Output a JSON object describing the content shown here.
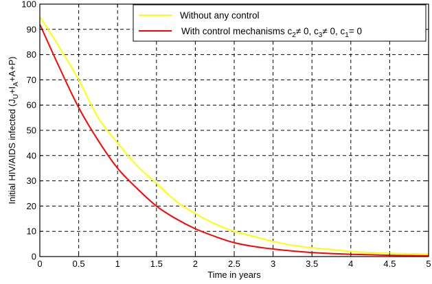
{
  "chart_data": {
    "type": "line",
    "xlabel": "Time in years",
    "ylabel": {
      "main": "Initial HIV/AIDS infected (J",
      "s1": "U",
      "mid": "+I",
      "s2": "A",
      "end": "+A+P)"
    },
    "xlim": [
      0,
      5
    ],
    "ylim": [
      0,
      100
    ],
    "xticks": [
      0,
      0.5,
      1,
      1.5,
      2,
      2.5,
      3,
      3.5,
      4,
      4.5,
      5
    ],
    "yticks": [
      0,
      10,
      20,
      30,
      40,
      50,
      60,
      70,
      80,
      90,
      100
    ],
    "grid": true,
    "legend_position": "top-right",
    "series": [
      {
        "name": "Without any control",
        "color": "#ffff00",
        "x": [
          0,
          0.25,
          0.5,
          0.75,
          1,
          1.25,
          1.5,
          1.75,
          2,
          2.25,
          2.5,
          2.75,
          3,
          3.25,
          3.5,
          3.75,
          4,
          4.25,
          4.5,
          4.75,
          5
        ],
        "y": [
          95,
          83,
          70,
          55,
          45,
          36,
          29,
          22,
          17,
          13,
          10,
          8,
          6,
          4.5,
          3.5,
          2.8,
          2,
          1.6,
          1.3,
          1.1,
          1
        ]
      },
      {
        "name": "With control mechanisms",
        "legend_parts": {
          "prefix": "With control mechanisms c",
          "s1": "2",
          "p1": "≠ 0, c",
          "s2": "3",
          "p2": "≠ 0, c",
          "s3": "1",
          "p3": "= 0"
        },
        "color": "#ff0000",
        "x": [
          0,
          0.25,
          0.5,
          0.75,
          1,
          1.25,
          1.5,
          1.75,
          2,
          2.25,
          2.5,
          2.75,
          3,
          3.25,
          3.5,
          3.75,
          4,
          4.25,
          4.5,
          4.75,
          5
        ],
        "y": [
          92,
          75,
          59,
          46,
          35,
          27,
          20,
          15,
          11,
          8,
          5.5,
          4,
          3,
          2.2,
          1.6,
          1.2,
          0.9,
          0.7,
          0.5,
          0.4,
          0.3
        ]
      }
    ]
  }
}
